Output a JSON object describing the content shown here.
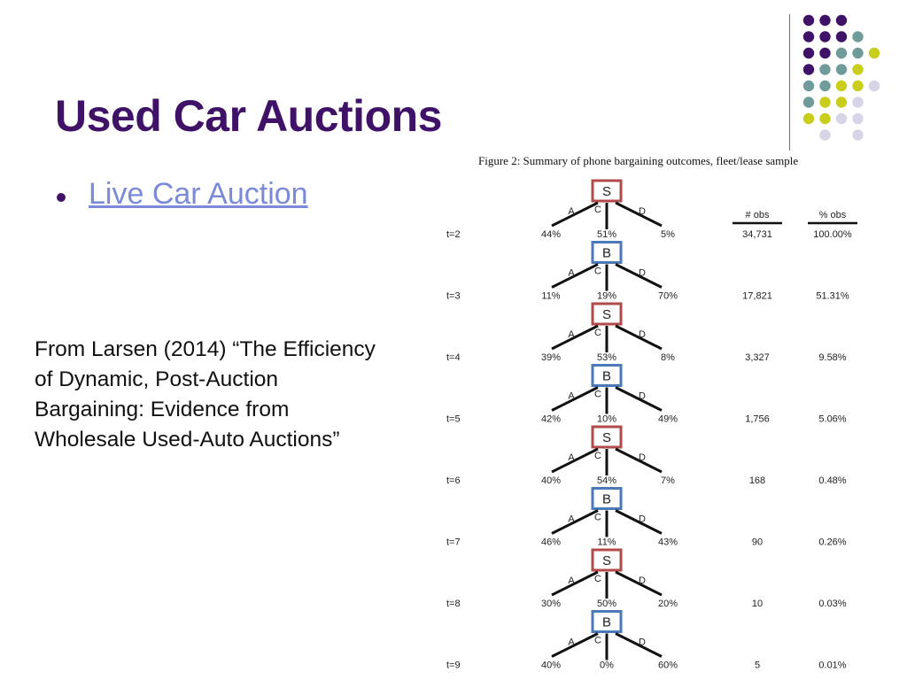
{
  "slide": {
    "title": "Used Car Auctions",
    "bullet": {
      "link_text": "Live Car Auction"
    },
    "citation_lines": [
      "From Larsen (2014) “The Efficiency",
      "of Dynamic, Post-Auction",
      "Bargaining: Evidence from",
      "Wholesale Used-Auto Auctions”"
    ],
    "decor": {
      "dot_colors": {
        "purple": "#3f1267",
        "teal": "#6f9c9b",
        "yellow": "#c9cd1c",
        "lavender": "#d6d4e6"
      },
      "dot_grid": [
        [
          "purple",
          "purple",
          "purple",
          "",
          "",
          ""
        ],
        [
          "purple",
          "purple",
          "purple",
          "teal",
          "",
          ""
        ],
        [
          "purple",
          "purple",
          "teal",
          "teal",
          "yellow",
          ""
        ],
        [
          "purple",
          "teal",
          "teal",
          "yellow",
          "",
          ""
        ],
        [
          "teal",
          "teal",
          "yellow",
          "yellow",
          "lavender",
          ""
        ],
        [
          "teal",
          "yellow",
          "yellow",
          "lavender",
          "",
          ""
        ],
        [
          "yellow",
          "yellow",
          "lavender",
          "lavender",
          "",
          ""
        ],
        [
          "",
          "lavender",
          "",
          "lavender",
          "",
          ""
        ]
      ],
      "line_color": "#6e6e6e"
    }
  },
  "figure": {
    "caption": "Figure 2: Summary of phone bargaining outcomes, fleet/lease sample",
    "headers": {
      "obs": "# obs",
      "pct_obs": "% obs"
    },
    "branch_labels": {
      "a": "A",
      "c": "C",
      "d": "D"
    },
    "node_colors": {
      "S": "#b24a4a",
      "B": "#4a7ab8"
    },
    "rows": [
      {
        "t": "t=2",
        "node": "S",
        "a": "44%",
        "c": "51%",
        "d": "5%",
        "obs": "34,731",
        "pct": "100.00%"
      },
      {
        "t": "t=3",
        "node": "B",
        "a": "11%",
        "c": "19%",
        "d": "70%",
        "obs": "17,821",
        "pct": "51.31%"
      },
      {
        "t": "t=4",
        "node": "S",
        "a": "39%",
        "c": "53%",
        "d": "8%",
        "obs": "3,327",
        "pct": "9.58%"
      },
      {
        "t": "t=5",
        "node": "B",
        "a": "42%",
        "c": "10%",
        "d": "49%",
        "obs": "1,756",
        "pct": "5.06%"
      },
      {
        "t": "t=6",
        "node": "S",
        "a": "40%",
        "c": "54%",
        "d": "7%",
        "obs": "168",
        "pct": "0.48%"
      },
      {
        "t": "t=7",
        "node": "B",
        "a": "46%",
        "c": "11%",
        "d": "43%",
        "obs": "90",
        "pct": "0.26%"
      },
      {
        "t": "t=8",
        "node": "S",
        "a": "30%",
        "c": "50%",
        "d": "20%",
        "obs": "10",
        "pct": "0.03%"
      },
      {
        "t": "t=9",
        "node": "B",
        "a": "40%",
        "c": "0%",
        "d": "60%",
        "obs": "5",
        "pct": "0.01%"
      }
    ]
  }
}
